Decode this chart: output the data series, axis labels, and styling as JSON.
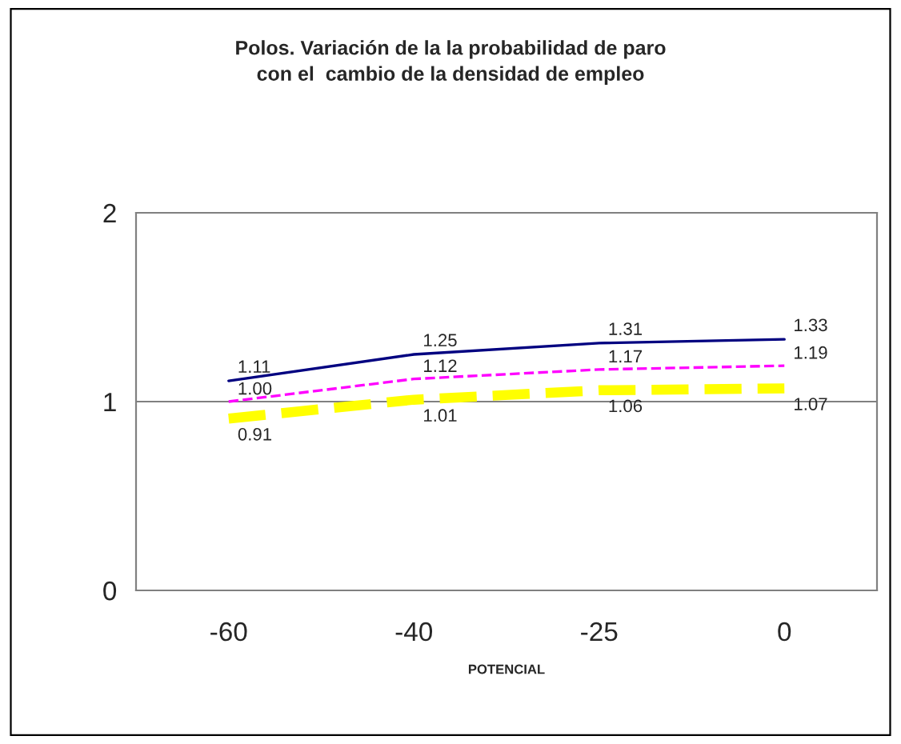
{
  "chart_data": {
    "type": "line",
    "title": "Polos. Variación de la la probabilidad de paro\ncon el  cambio de la densidad de empleo",
    "xlabel": "POTENCIAL",
    "categories": [
      "-60",
      "-40",
      "-25",
      "0"
    ],
    "ylim": [
      0,
      2
    ],
    "yticks": [
      0,
      1,
      2
    ],
    "grid": "y",
    "legend": false,
    "series": [
      {
        "color": "#000080",
        "values": [
          1.11,
          1.25,
          1.31,
          1.33
        ],
        "line_style": "solid",
        "value_labels": [
          "1.11",
          "1.25",
          "1.31",
          "1.33"
        ]
      },
      {
        "color": "#ff00ff",
        "values": [
          1.0,
          1.12,
          1.17,
          1.19
        ],
        "line_style": "dashed",
        "value_labels": [
          "1.00",
          "1.12",
          "1.17",
          "1.19"
        ]
      },
      {
        "color": "#ffff00",
        "values": [
          0.91,
          1.01,
          1.06,
          1.07
        ],
        "line_style": "dashed",
        "value_labels": [
          "0.91",
          "1.01",
          "1.06",
          "1.07"
        ]
      }
    ]
  }
}
